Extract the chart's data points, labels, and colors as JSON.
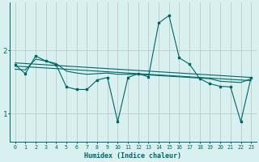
{
  "xlabel": "Humidex (Indice chaleur)",
  "ylabel": "",
  "bg_color": "#d8f0f0",
  "grid_color": "#c0c8c8",
  "line_color": "#006666",
  "x_ticks": [
    0,
    1,
    2,
    3,
    4,
    5,
    6,
    7,
    8,
    9,
    10,
    11,
    12,
    13,
    14,
    15,
    16,
    17,
    18,
    19,
    20,
    21,
    22,
    23
  ],
  "y_ticks": [
    1,
    2
  ],
  "xlim": [
    -0.5,
    23.5
  ],
  "ylim": [
    0.55,
    2.75
  ],
  "series": {
    "jagged": [
      1.77,
      1.63,
      1.91,
      1.83,
      1.77,
      1.42,
      1.38,
      1.38,
      1.53,
      1.57,
      0.87,
      1.57,
      1.63,
      1.58,
      2.43,
      2.55,
      1.88,
      1.78,
      1.55,
      1.47,
      1.43,
      1.42,
      0.87,
      1.57
    ],
    "line1": [
      1.8,
      1.79,
      1.78,
      1.77,
      1.76,
      1.75,
      1.74,
      1.73,
      1.72,
      1.71,
      1.7,
      1.69,
      1.68,
      1.67,
      1.66,
      1.65,
      1.64,
      1.63,
      1.62,
      1.61,
      1.6,
      1.59,
      1.58,
      1.57
    ],
    "line2": [
      1.75,
      1.74,
      1.73,
      1.72,
      1.71,
      1.7,
      1.69,
      1.68,
      1.67,
      1.66,
      1.65,
      1.64,
      1.63,
      1.62,
      1.61,
      1.6,
      1.59,
      1.58,
      1.57,
      1.56,
      1.55,
      1.54,
      1.53,
      1.52
    ],
    "line3": [
      1.7,
      1.69,
      1.86,
      1.83,
      1.79,
      1.67,
      1.64,
      1.62,
      1.63,
      1.64,
      1.62,
      1.62,
      1.62,
      1.61,
      1.6,
      1.59,
      1.58,
      1.57,
      1.56,
      1.55,
      1.51,
      1.5,
      1.49,
      1.55
    ]
  }
}
